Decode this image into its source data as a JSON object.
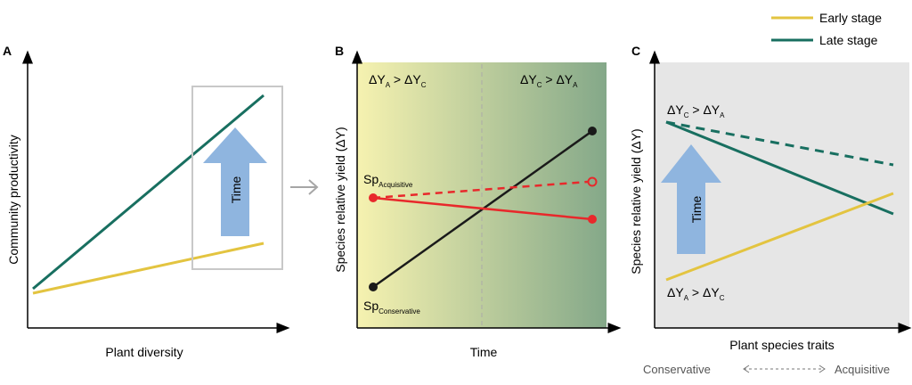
{
  "colors": {
    "early": "#e3c440",
    "late": "#186f60",
    "acquisitive": "#e8282b",
    "conservative": "#1a1a1a",
    "time_arrow": "#8fb5df",
    "panel_c_bg": "#e6e6e6",
    "gradient_start": "#f6f2b0",
    "gradient_end": "#84a889"
  },
  "legend": {
    "early": "Early stage",
    "late": "Late stage"
  },
  "panel_a": {
    "letter": "A",
    "ylabel": "Community productivity",
    "xlabel": "Plant diversity",
    "time_label": "Time"
  },
  "panel_b": {
    "letter": "B",
    "ylabel": "Species relative yield (ΔY)",
    "xlabel": "Time",
    "left_delta": "ΔY",
    "left_sub1": "A",
    "left_gt": " > ΔY",
    "left_sub2": "C",
    "right_delta": "ΔY",
    "right_sub1": "C",
    "right_gt": " > ΔY",
    "right_sub2": "A",
    "sp_acq": "Sp",
    "sp_acq_sub": "Acquisitive",
    "sp_con": "Sp",
    "sp_con_sub": "Conservative"
  },
  "panel_c": {
    "letter": "C",
    "ylabel": "Species relative yield (ΔY)",
    "xlabel": "Plant species traits",
    "top_delta": "ΔY",
    "top_sub1": "C",
    "top_gt": " > ΔY",
    "top_sub2": "A",
    "bottom_delta": "ΔY",
    "bottom_sub1": "A",
    "bottom_gt": " > ΔY",
    "bottom_sub2": "C",
    "time_label": "Time",
    "trait_left": "Conservative",
    "trait_right": "Acquisitive"
  }
}
